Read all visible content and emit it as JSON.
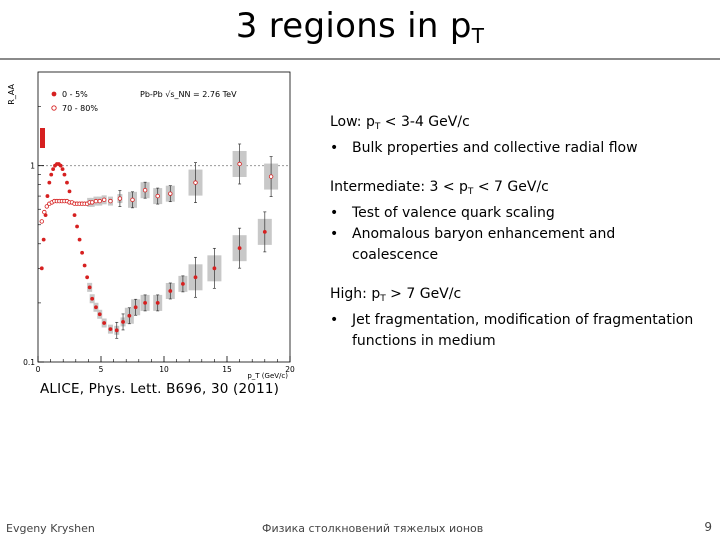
{
  "slide": {
    "title_main": "3 regions in p",
    "title_sub": "T",
    "reference": "ALICE, Phys. Lett. B696, 30 (2011)",
    "footer_author": "Evgeny Kryshen",
    "footer_title": "Физика столкновений тяжелых ионов",
    "page_number": "9"
  },
  "regions": {
    "low": {
      "heading_prefix": "Low: p",
      "heading_sub": "T",
      "heading_suffix": " < 3-4 GeV/c",
      "bullets": [
        "Bulk properties and collective radial flow"
      ]
    },
    "intermediate": {
      "heading_prefix": "Intermediate: 3 < p",
      "heading_sub": "T",
      "heading_suffix": " < 7 GeV/c",
      "bullets": [
        "Test of valence quark scaling",
        "Anomalous baryon enhancement and coalescence"
      ]
    },
    "high": {
      "heading_prefix": "High: p",
      "heading_sub": "T",
      "heading_suffix": " > 7 GeV/c",
      "bullets": [
        "Jet fragmentation, modification of fragmentation functions in medium"
      ]
    }
  },
  "chart_data": {
    "type": "scatter",
    "ylabel": "R_AA",
    "xlabel": "p_T (GeV/c)",
    "collision_label": "Pb-Pb  √s_NN = 2.76 TeV",
    "x_ticks": [
      "0",
      "5",
      "10",
      "15",
      "20"
    ],
    "y_ticks": [
      "0.1",
      "1"
    ],
    "xlim": [
      0,
      20
    ],
    "ylim": [
      0.1,
      3
    ],
    "y_scale": "log",
    "series": [
      {
        "name": "0 - 5%",
        "color": "#d62020",
        "x": [
          0.3,
          0.45,
          0.6,
          0.75,
          0.9,
          1.05,
          1.2,
          1.35,
          1.5,
          1.65,
          1.8,
          1.95,
          2.1,
          2.3,
          2.5,
          2.7,
          2.9,
          3.1,
          3.3,
          3.5,
          3.7,
          3.9,
          4.1,
          4.3,
          4.6,
          4.9,
          5.25,
          5.75,
          6.25,
          6.75,
          7.25,
          7.75,
          8.5,
          9.5,
          10.5,
          11.5,
          12.5,
          14,
          16,
          18
        ],
        "y": [
          0.3,
          0.42,
          0.56,
          0.7,
          0.82,
          0.9,
          0.96,
          1.0,
          1.02,
          1.02,
          1.0,
          0.96,
          0.9,
          0.82,
          0.74,
          0.65,
          0.56,
          0.49,
          0.42,
          0.36,
          0.31,
          0.27,
          0.24,
          0.21,
          0.19,
          0.175,
          0.158,
          0.147,
          0.145,
          0.16,
          0.172,
          0.19,
          0.2,
          0.2,
          0.23,
          0.25,
          0.27,
          0.3,
          0.38,
          0.46
        ]
      },
      {
        "name": "70 - 80%",
        "color": "#d62020",
        "x": [
          0.3,
          0.5,
          0.7,
          0.9,
          1.1,
          1.3,
          1.5,
          1.7,
          1.9,
          2.1,
          2.3,
          2.5,
          2.7,
          2.9,
          3.1,
          3.3,
          3.5,
          3.7,
          3.9,
          4.1,
          4.3,
          4.6,
          4.9,
          5.25,
          5.75,
          6.5,
          7.5,
          8.5,
          9.5,
          10.5,
          12.5,
          16,
          18.5
        ],
        "y": [
          0.52,
          0.58,
          0.62,
          0.64,
          0.65,
          0.66,
          0.66,
          0.66,
          0.66,
          0.66,
          0.66,
          0.65,
          0.65,
          0.64,
          0.64,
          0.64,
          0.64,
          0.64,
          0.64,
          0.65,
          0.65,
          0.66,
          0.66,
          0.67,
          0.66,
          0.68,
          0.67,
          0.75,
          0.7,
          0.72,
          0.82,
          1.02,
          0.88
        ]
      }
    ],
    "legend_position": "top-left"
  }
}
